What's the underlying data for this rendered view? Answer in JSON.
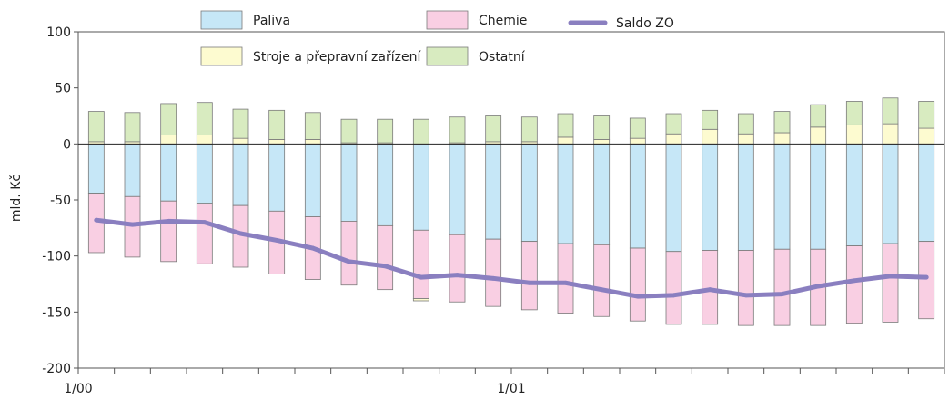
{
  "chart_data": {
    "type": "bar",
    "subtype": "stacked-bar-with-line",
    "ylabel": "mld. Kč",
    "ylim": [
      -200,
      100
    ],
    "yticks": [
      -200,
      -150,
      -100,
      -50,
      0,
      50,
      100
    ],
    "x_tick_labels": [
      {
        "index": 0,
        "label": "1/00"
      },
      {
        "index": 12,
        "label": "1/01"
      }
    ],
    "legend_position": "top",
    "series": [
      {
        "name": "Paliva",
        "color": "#c6e7f7",
        "values": [
          -44,
          -47,
          -51,
          -53,
          -55,
          -60,
          -65,
          -69,
          -73,
          -77,
          -81,
          -85,
          -87,
          -89,
          -90,
          -93,
          -96,
          -95,
          -95,
          -94,
          -94,
          -91,
          -89,
          -87
        ]
      },
      {
        "name": "Chemie",
        "color": "#f9cfe3",
        "values": [
          -53,
          -54,
          -54,
          -54,
          -55,
          -56,
          -56,
          -57,
          -57,
          -61,
          -60,
          -60,
          -61,
          -62,
          -64,
          -65,
          -65,
          -66,
          -67,
          -68,
          -68,
          -69,
          -70,
          -69
        ]
      },
      {
        "name": "Stroje a přepravní zařízení",
        "color": "#fdfbd0",
        "values": [
          2,
          2,
          8,
          8,
          5,
          4,
          4,
          1,
          1,
          -2,
          1,
          2,
          2,
          6,
          4,
          5,
          9,
          13,
          9,
          10,
          15,
          17,
          18,
          14
        ]
      },
      {
        "name": "Ostatní",
        "color": "#d8ebc0",
        "values": [
          27,
          26,
          28,
          29,
          26,
          26,
          24,
          21,
          21,
          22,
          23,
          23,
          22,
          21,
          21,
          18,
          18,
          17,
          18,
          19,
          20,
          21,
          23,
          24
        ]
      }
    ],
    "line_series": {
      "name": "Saldo ZO",
      "color": "#8a7fc0",
      "values": [
        -68,
        -72,
        -69,
        -70,
        -80,
        -86,
        -93,
        -105,
        -109,
        -119,
        -117,
        -120,
        -124,
        -124,
        -130,
        -136,
        -135,
        -130,
        -135,
        -134,
        -127,
        -122,
        -118,
        -119
      ]
    }
  }
}
